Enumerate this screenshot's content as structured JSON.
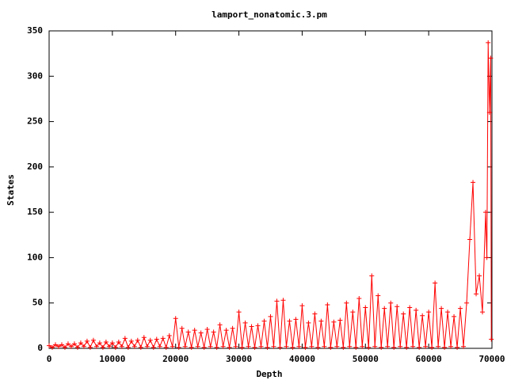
{
  "chart_data": {
    "type": "line",
    "title": "lamport_nonatomic.3.pm",
    "x_label": "Depth",
    "y_label": "States",
    "color": "#ff0000",
    "marker": "+",
    "xlim": [
      0,
      70000
    ],
    "ylim": [
      0,
      350
    ],
    "xticks": [
      0,
      10000,
      20000,
      30000,
      40000,
      50000,
      60000,
      70000
    ],
    "yticks": [
      0,
      50,
      100,
      150,
      200,
      250,
      300,
      350
    ],
    "x": [
      0,
      500,
      1000,
      1500,
      2000,
      2500,
      3000,
      3500,
      4000,
      4500,
      5000,
      5500,
      6000,
      6500,
      7000,
      7500,
      8000,
      8500,
      9000,
      9500,
      10000,
      10500,
      11000,
      11500,
      12000,
      12500,
      13000,
      13500,
      14000,
      14500,
      15000,
      15500,
      16000,
      16500,
      17000,
      17500,
      18000,
      18500,
      19000,
      19500,
      20000,
      20500,
      21000,
      21500,
      22000,
      22500,
      23000,
      23500,
      24000,
      24500,
      25000,
      25500,
      26000,
      26500,
      27000,
      27500,
      28000,
      28500,
      29000,
      29500,
      30000,
      30500,
      31000,
      31500,
      32000,
      32500,
      33000,
      33500,
      34000,
      34500,
      35000,
      35500,
      36000,
      36500,
      37000,
      37500,
      38000,
      38500,
      39000,
      39500,
      40000,
      40500,
      41000,
      41500,
      42000,
      42500,
      43000,
      43500,
      44000,
      44500,
      45000,
      45500,
      46000,
      46500,
      47000,
      47500,
      48000,
      48500,
      49000,
      49500,
      50000,
      50500,
      51000,
      51500,
      52000,
      52500,
      53000,
      53500,
      54000,
      54500,
      55000,
      55500,
      56000,
      56500,
      57000,
      57500,
      58000,
      58500,
      59000,
      59500,
      60000,
      60500,
      61000,
      61500,
      62000,
      62500,
      63000,
      63500,
      64000,
      64500,
      65000,
      65500,
      66000,
      66500,
      67000,
      67500,
      68000,
      68500,
      69000,
      69200,
      69400,
      69600,
      69800,
      69900
    ],
    "values": [
      3,
      1,
      4,
      2,
      4,
      1,
      5,
      2,
      5,
      1,
      6,
      2,
      8,
      1,
      9,
      2,
      6,
      1,
      7,
      2,
      6,
      1,
      7,
      2,
      11,
      1,
      8,
      2,
      9,
      1,
      12,
      2,
      9,
      1,
      10,
      2,
      11,
      1,
      14,
      2,
      33,
      1,
      22,
      2,
      18,
      1,
      20,
      2,
      17,
      1,
      21,
      2,
      18,
      1,
      26,
      2,
      20,
      1,
      22,
      2,
      40,
      1,
      28,
      2,
      24,
      1,
      25,
      2,
      30,
      1,
      35,
      2,
      52,
      1,
      53,
      2,
      30,
      1,
      32,
      2,
      47,
      1,
      28,
      2,
      38,
      1,
      30,
      2,
      48,
      1,
      29,
      2,
      31,
      1,
      50,
      2,
      40,
      1,
      55,
      2,
      45,
      1,
      80,
      2,
      58,
      1,
      44,
      2,
      50,
      1,
      46,
      2,
      38,
      1,
      45,
      2,
      42,
      1,
      36,
      2,
      40,
      1,
      72,
      2,
      44,
      1,
      40,
      2,
      35,
      1,
      44,
      2,
      50,
      120,
      183,
      60,
      80,
      40,
      150,
      100,
      337,
      260,
      320,
      10
    ]
  }
}
